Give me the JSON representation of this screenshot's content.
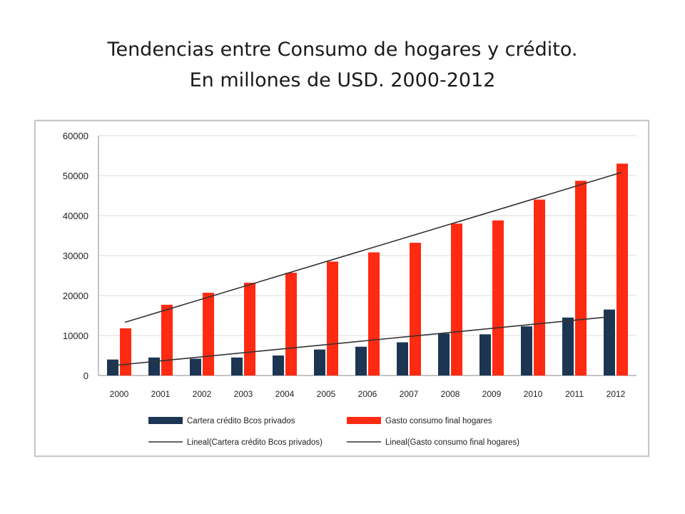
{
  "slide": {
    "title_line1": "Tendencias entre Consumo de hogares y crédito.",
    "title_line2": "En millones de USD. 2000-2012"
  },
  "chart_data": {
    "type": "bar",
    "categories": [
      "2000",
      "2001",
      "2002",
      "2003",
      "2004",
      "2005",
      "2006",
      "2007",
      "2008",
      "2009",
      "2010",
      "2011",
      "2012"
    ],
    "ylim": [
      0,
      60000
    ],
    "yticks": [
      "0",
      "10000",
      "20000",
      "30000",
      "40000",
      "50000",
      "60000"
    ],
    "grid": true,
    "legend_position": "bottom",
    "series": [
      {
        "name": "Cartera crédito Bcos privados",
        "color": "#1c3553",
        "values": [
          4000,
          4500,
          4200,
          4500,
          5000,
          6500,
          7200,
          8300,
          10500,
          10300,
          12300,
          14500,
          16500
        ]
      },
      {
        "name": "Gasto consumo final hogares",
        "color": "#ff2a12",
        "values": [
          11800,
          17700,
          20700,
          23200,
          25700,
          28500,
          30800,
          33200,
          38000,
          38800,
          44000,
          48700,
          53000
        ]
      }
    ],
    "trendlines": [
      {
        "name": "Lineal(Cartera crédito Bcos privados)",
        "color": "#333333",
        "start": 2500,
        "end": 14700
      },
      {
        "name": "Lineal(Gasto consumo final hogares)",
        "color": "#333333",
        "start": 13300,
        "end": 50800
      }
    ]
  }
}
